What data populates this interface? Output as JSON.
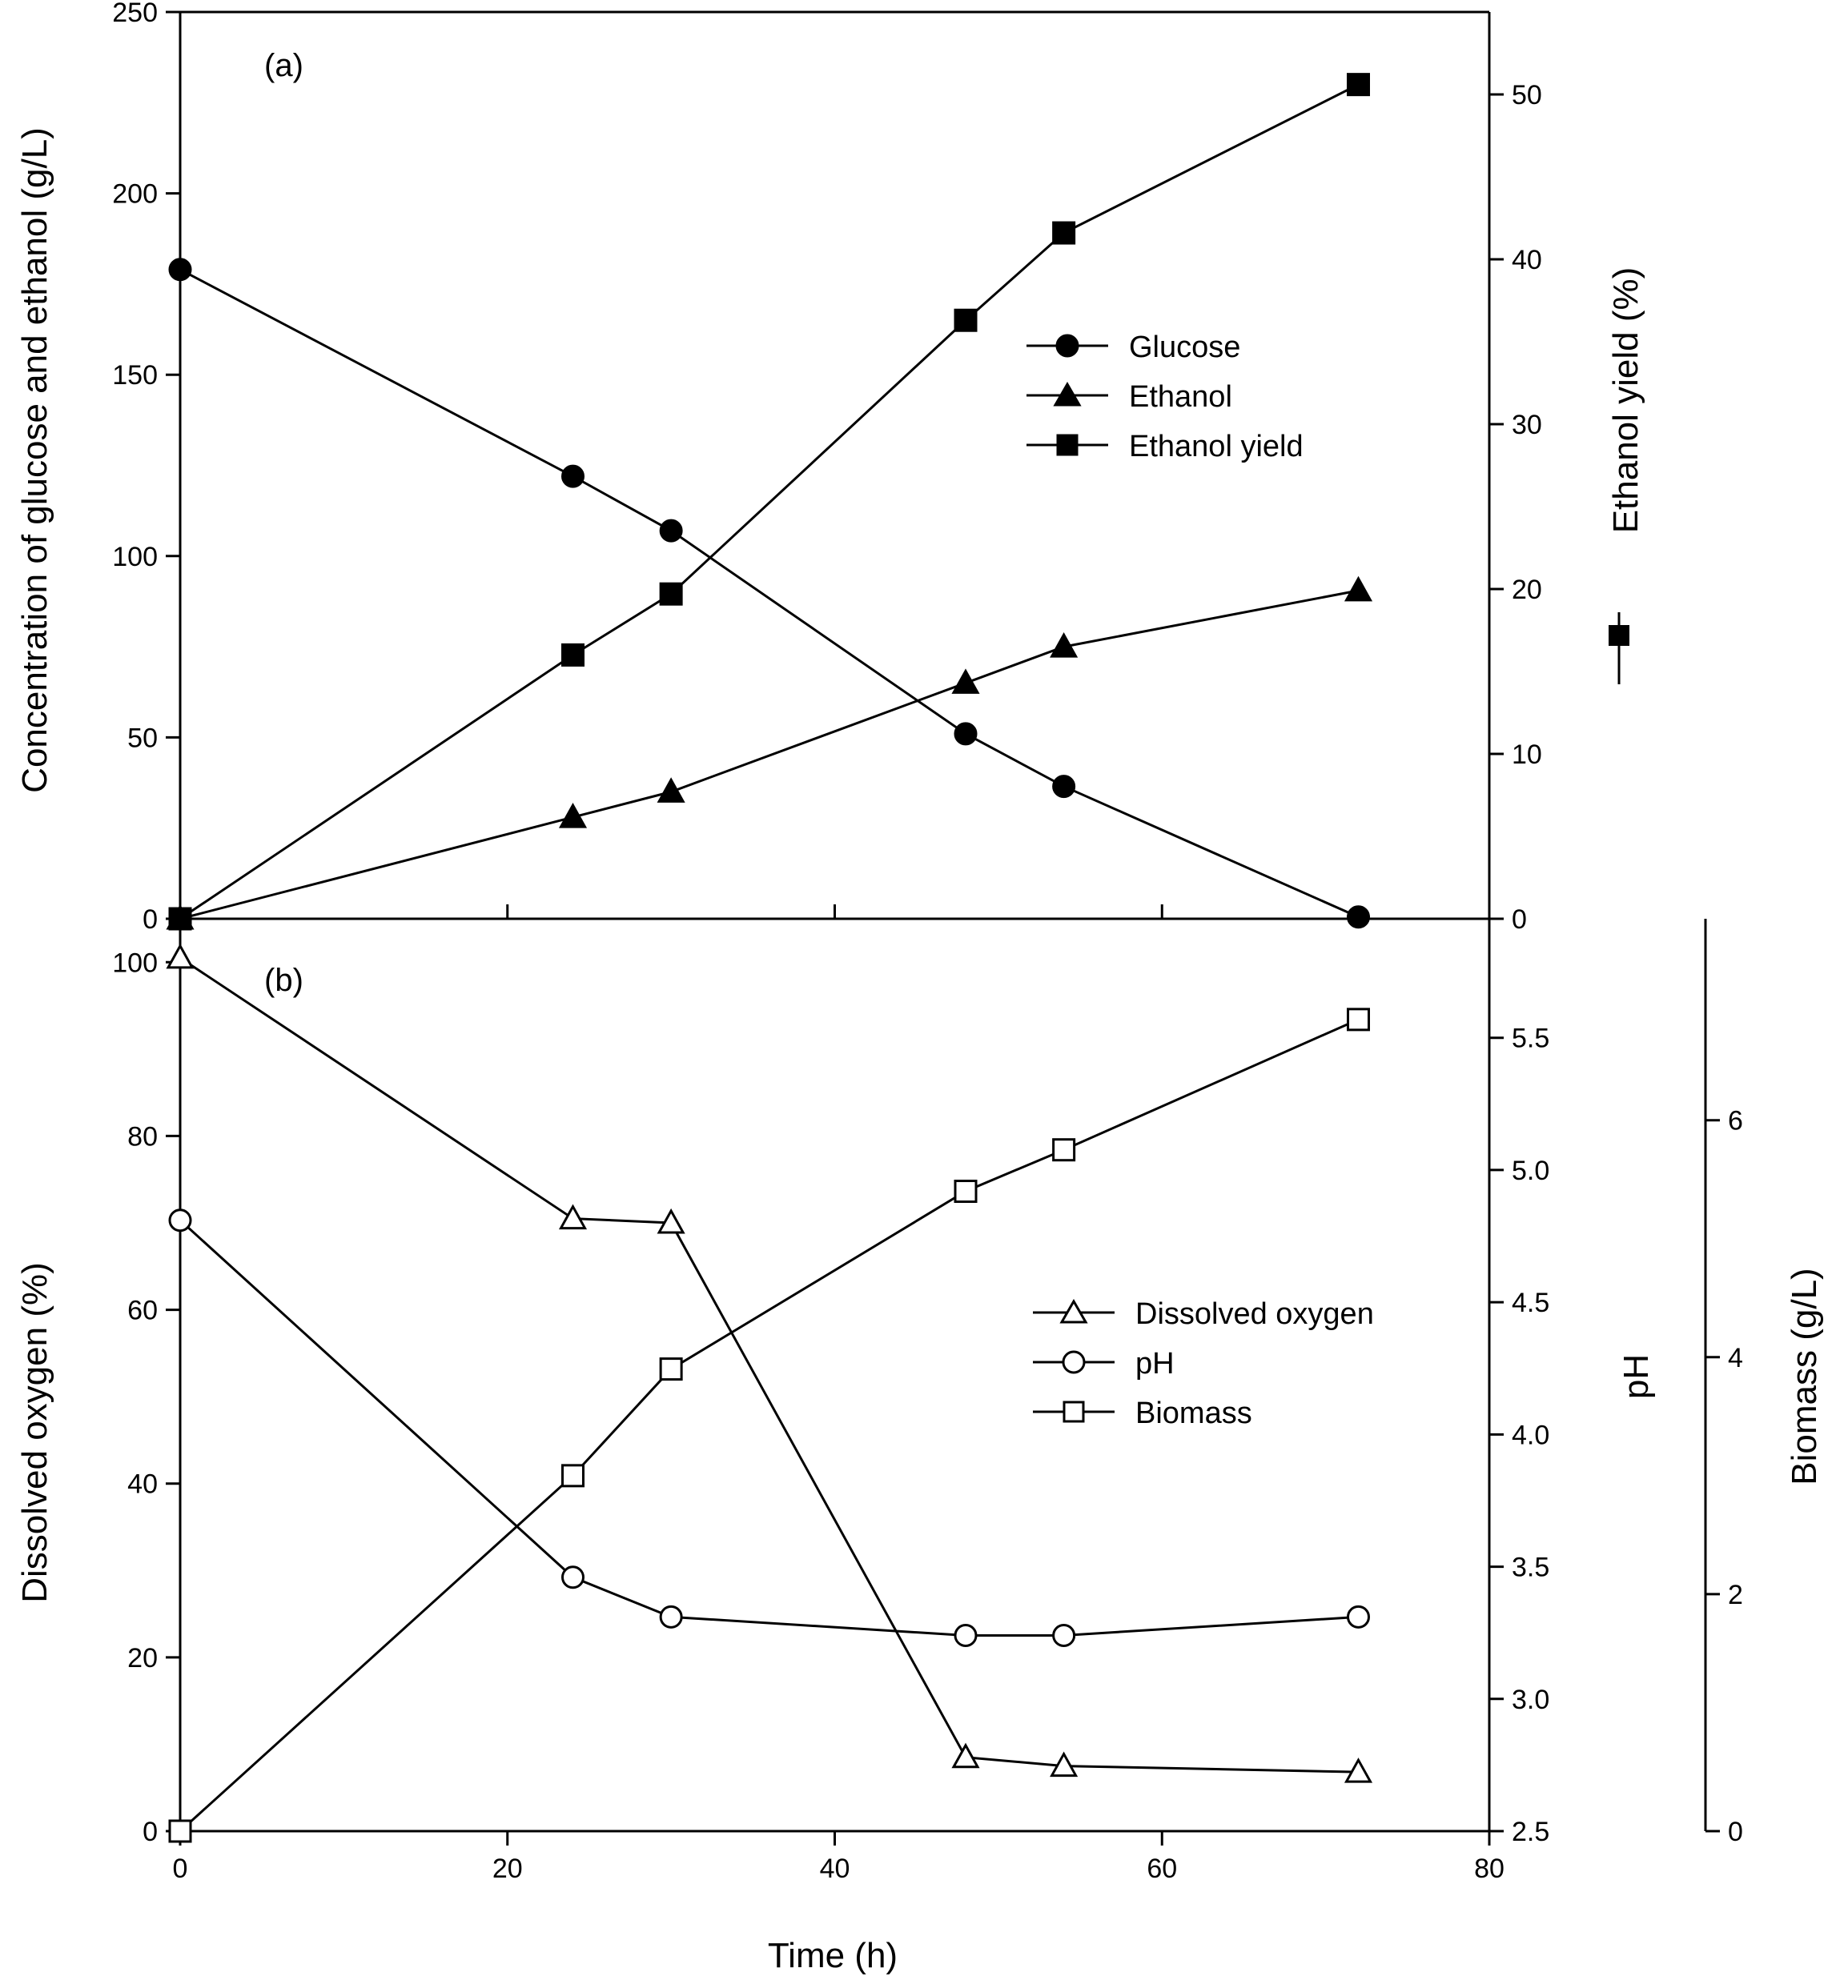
{
  "chart_data": [
    {
      "panel_label": "(a)",
      "type": "line",
      "x": [
        0,
        24,
        30,
        48,
        54,
        72
      ],
      "xlim": [
        0,
        80
      ],
      "xticks": [
        0,
        20,
        40,
        60,
        80
      ],
      "ylabel": "Concentration of glucose and ethanol (g/L)",
      "ylim": [
        0,
        250
      ],
      "yticks": [
        0,
        50,
        100,
        150,
        200,
        250
      ],
      "y2label": "Ethanol yield (%)",
      "y2lim": [
        0,
        55
      ],
      "y2ticks": [
        0,
        10,
        20,
        30,
        40,
        50
      ],
      "legend_position": "center-right",
      "series": [
        {
          "name": "Glucose",
          "marker": "circle",
          "fill": "filled",
          "axis": "left",
          "values": [
            179,
            122,
            107,
            51,
            36.5,
            0.5
          ]
        },
        {
          "name": "Ethanol",
          "marker": "triangle",
          "fill": "filled",
          "axis": "left",
          "values": [
            0,
            28,
            35,
            65,
            75,
            90.5
          ]
        },
        {
          "name": "Ethanol yield",
          "marker": "square",
          "fill": "filled",
          "axis": "right",
          "values": [
            0,
            16,
            19.7,
            36.3,
            41.6,
            50.6
          ]
        }
      ]
    },
    {
      "panel_label": "(b)",
      "type": "line",
      "x": [
        0,
        24,
        30,
        48,
        54,
        72
      ],
      "xlabel": "Time (h)",
      "xlim": [
        0,
        80
      ],
      "xticks": [
        0,
        20,
        40,
        60,
        80
      ],
      "ylabel": "Dissolved oxygen (%)",
      "ylim": [
        0,
        105
      ],
      "yticks": [
        0,
        20,
        40,
        60,
        80,
        100
      ],
      "y2label": "pH",
      "y2lim": [
        2.5,
        5.95
      ],
      "y2ticks": [
        "2.5",
        "3.0",
        "3.5",
        "4.0",
        "4.5",
        "5.0",
        "5.5"
      ],
      "y3label": "Biomass (g/L)",
      "y3lim": [
        0,
        7.7
      ],
      "y3ticks": [
        0,
        2,
        4,
        6
      ],
      "legend_position": "center-right",
      "series": [
        {
          "name": "Dissolved oxygen",
          "marker": "triangle",
          "fill": "open",
          "axis": "left",
          "values": [
            100.5,
            70.5,
            70,
            8.5,
            7.5,
            6.8
          ]
        },
        {
          "name": "pH",
          "marker": "circle",
          "fill": "open",
          "axis": "right",
          "values": [
            4.81,
            3.46,
            3.31,
            3.24,
            3.24,
            3.31
          ]
        },
        {
          "name": "Biomass",
          "marker": "square",
          "fill": "open",
          "axis": "third",
          "values": [
            0,
            3.0,
            3.9,
            5.4,
            5.75,
            6.85
          ]
        }
      ]
    }
  ]
}
